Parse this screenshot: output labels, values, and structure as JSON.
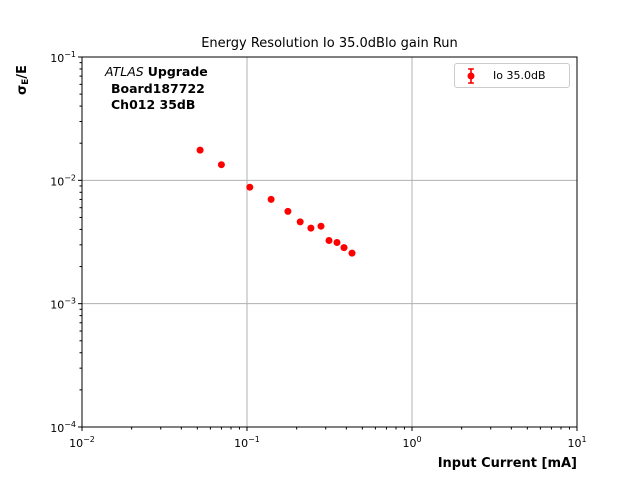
{
  "figure": {
    "annotation": {
      "experiment": "ATLAS",
      "program": "Upgrade",
      "board": "Board187722",
      "channel": "Ch012 35dB"
    },
    "legend": {
      "label": "Io 35.0dB",
      "marker_color": "#ff0000"
    },
    "colors": {
      "series": "#ff0000",
      "grid": "#b0b0b0",
      "spine": "#000000",
      "legend_border": "#cccccc",
      "text": "#000000"
    }
  },
  "chart_data": {
    "type": "scatter",
    "title": "Energy Resolution Io 35.0dBlo gain Run",
    "xlabel": "Input Current [mA]",
    "ylabel": "σE/E",
    "ylabel_parts": {
      "main": "σ",
      "sub": "E",
      "rest": "/E"
    },
    "xscale": "log",
    "yscale": "log",
    "xlim": [
      0.01,
      10
    ],
    "ylim": [
      0.0001,
      0.1
    ],
    "grid": true,
    "legend_position": "upper right",
    "series": [
      {
        "name": "Io 35.0dB",
        "color": "#ff0000",
        "marker": "errorbar-point",
        "x": [
          0.052,
          0.07,
          0.104,
          0.14,
          0.177,
          0.21,
          0.244,
          0.281,
          0.314,
          0.351,
          0.387,
          0.433
        ],
        "y": [
          0.0176,
          0.0134,
          0.0088,
          0.007,
          0.0056,
          0.0046,
          0.0041,
          0.00425,
          0.00325,
          0.00313,
          0.00285,
          0.00257
        ]
      }
    ]
  }
}
